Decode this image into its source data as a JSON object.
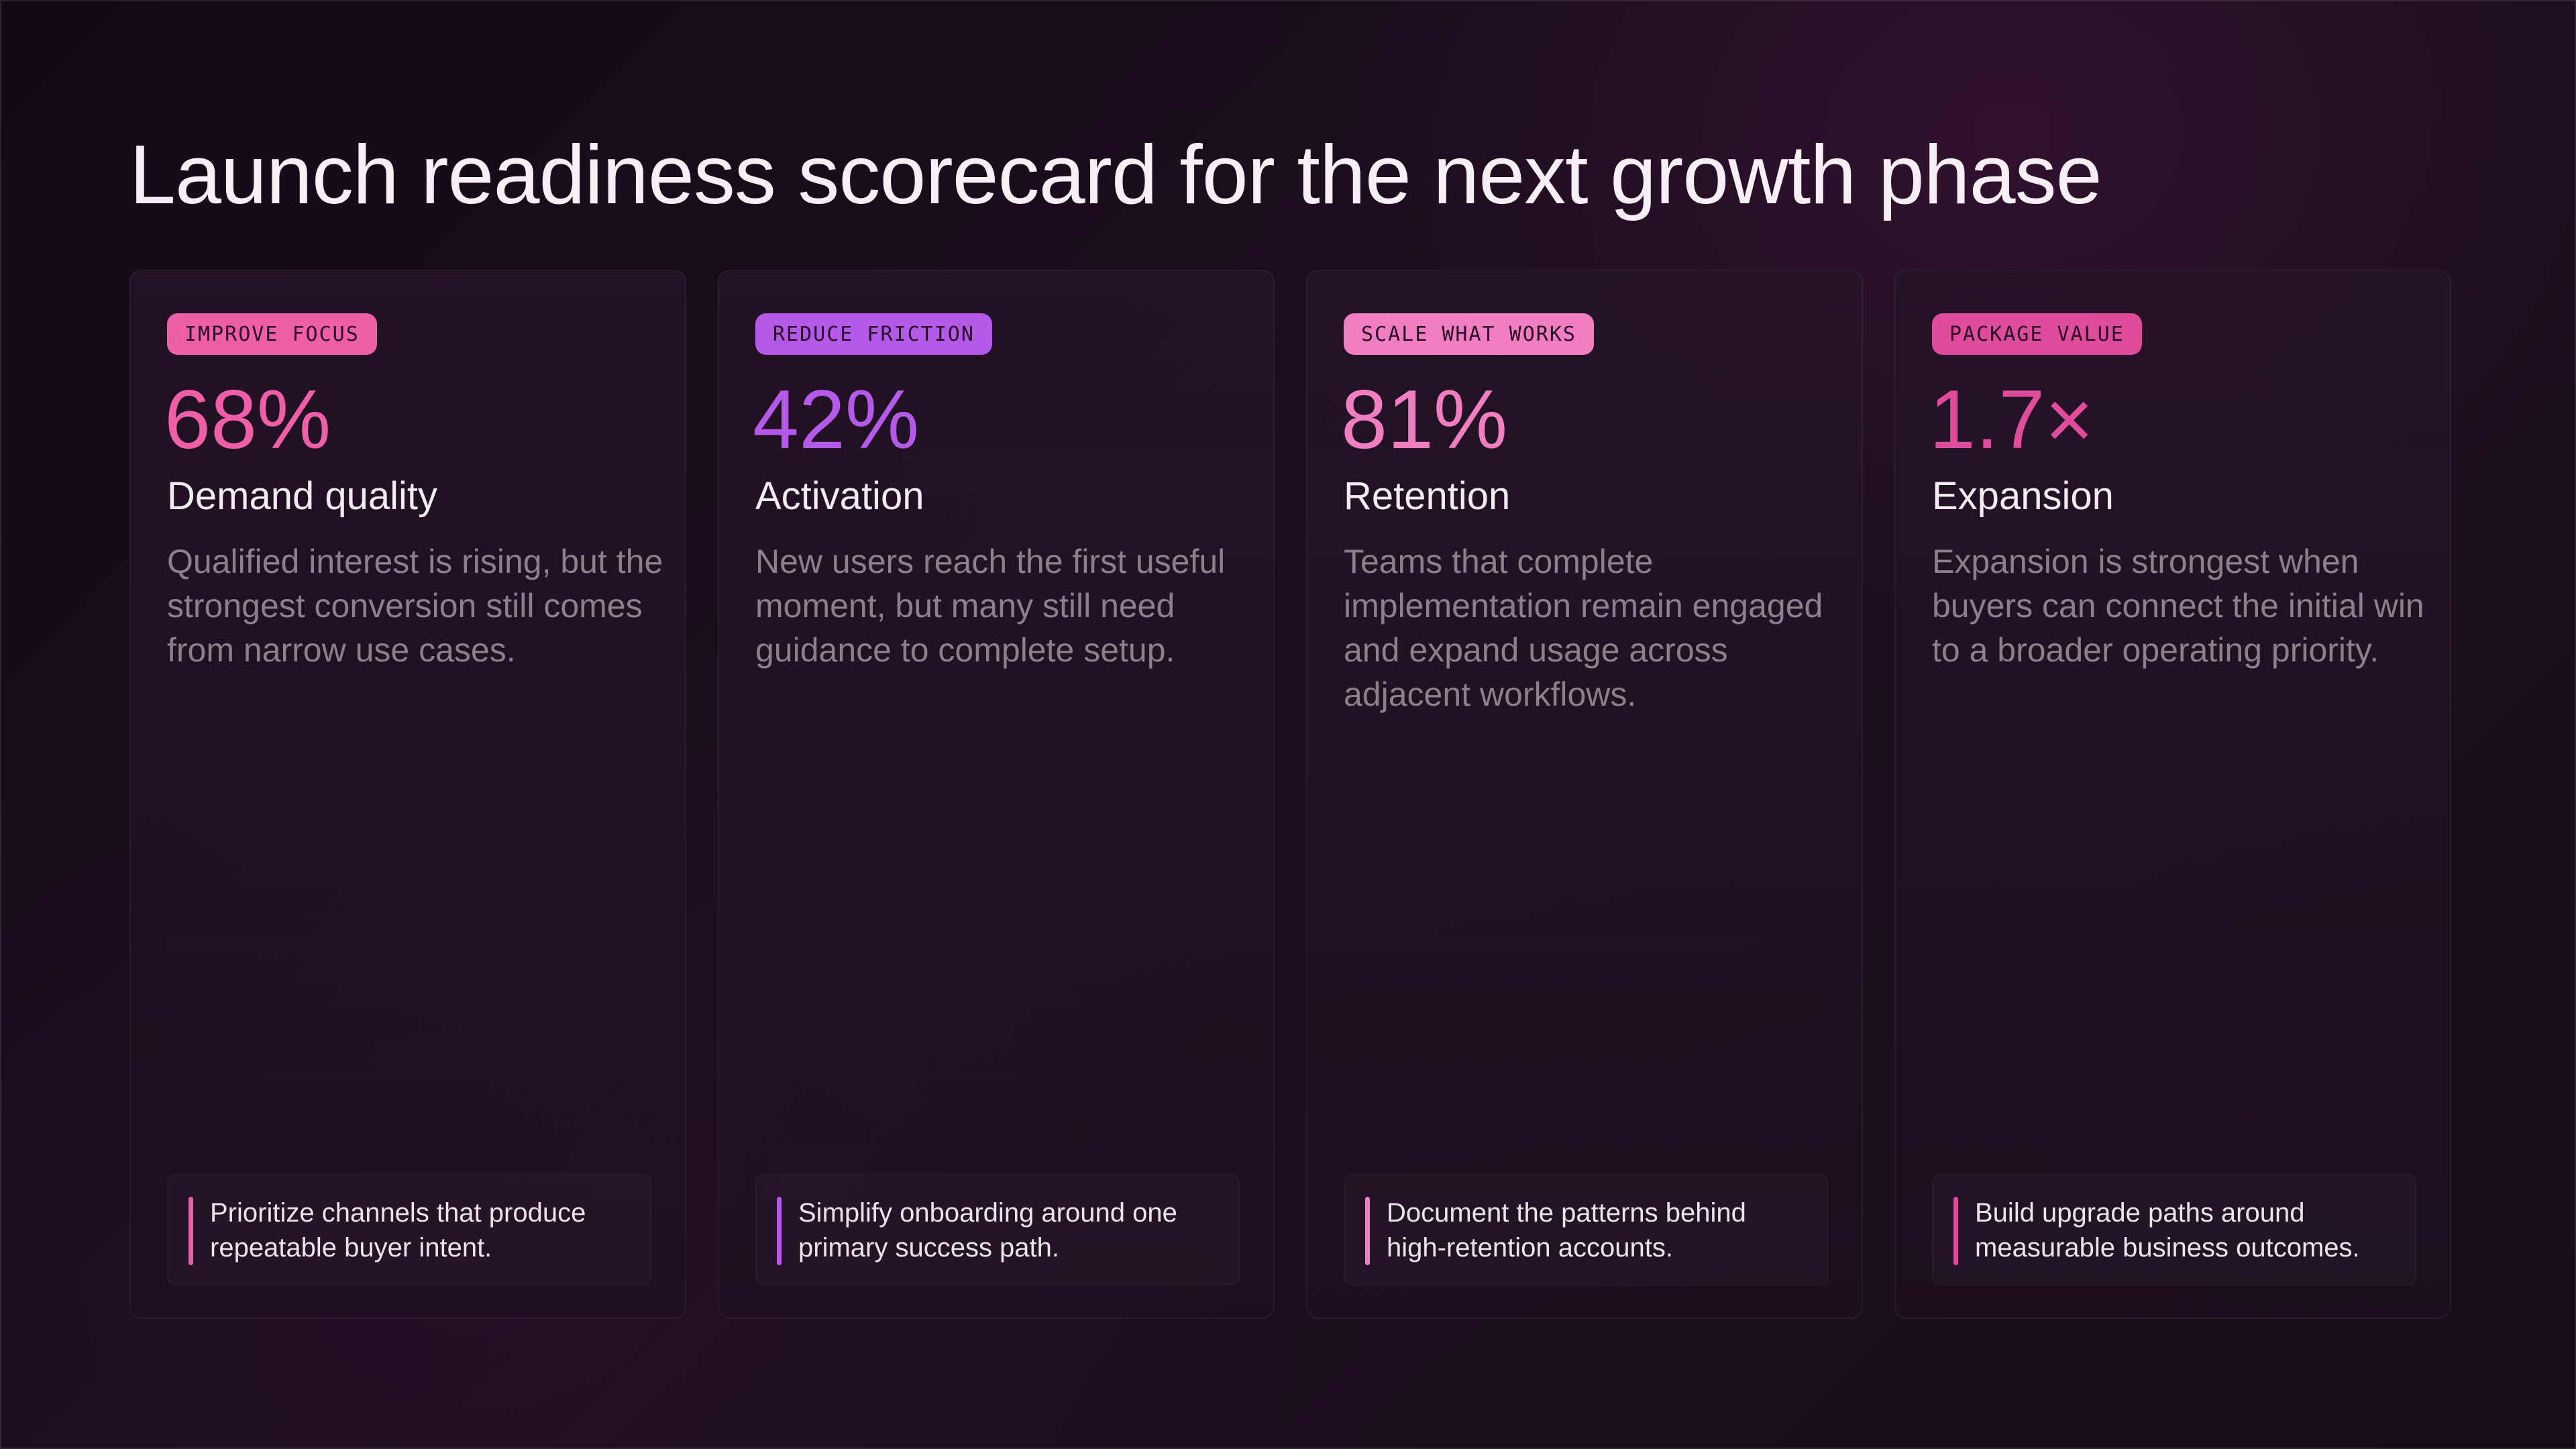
{
  "title": "Launch readiness scorecard for the next growth phase",
  "colors": {
    "pink": "#ee5fa7",
    "purple": "#b35ae8",
    "light_pink": "#f17ec0",
    "magenta": "#e04c9c"
  },
  "cards": [
    {
      "tag": "IMPROVE FOCUS",
      "metric": "68%",
      "heading": "Demand quality",
      "body": "Qualified interest is rising, but the strongest conversion still comes from narrow use cases.",
      "action": "Prioritize channels that produce repeatable buyer intent.",
      "accent": "#ee5fa7"
    },
    {
      "tag": "REDUCE FRICTION",
      "metric": "42%",
      "heading": "Activation",
      "body": "New users reach the first useful moment, but many still need guidance to complete setup.",
      "action": "Simplify onboarding around one primary success path.",
      "accent": "#b35ae8"
    },
    {
      "tag": "SCALE WHAT WORKS",
      "metric": "81%",
      "heading": "Retention",
      "body": "Teams that complete implementation remain engaged and expand usage across adjacent workflows.",
      "action": "Document the patterns behind high-retention accounts.",
      "accent": "#f17ec0"
    },
    {
      "tag": "PACKAGE VALUE",
      "metric": "1.7×",
      "heading": "Expansion",
      "body": "Expansion is strongest when buyers can connect the initial win to a broader operating priority.",
      "action": "Build upgrade paths around measurable business outcomes.",
      "accent": "#e04c9c"
    }
  ]
}
